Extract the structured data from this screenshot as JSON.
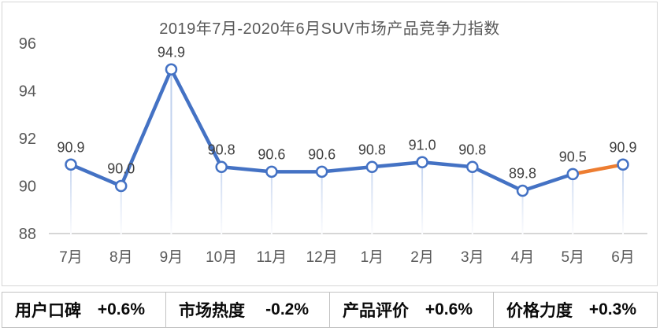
{
  "chart_data": {
    "type": "line",
    "title": "2019年7月-2020年6月SUV市场产品竞争力指数",
    "categories": [
      "7月",
      "8月",
      "9月",
      "10月",
      "11月",
      "12月",
      "1月",
      "2月",
      "3月",
      "4月",
      "5月",
      "6月"
    ],
    "values": [
      90.9,
      90.0,
      94.9,
      90.8,
      90.6,
      90.6,
      90.8,
      91.0,
      90.8,
      89.8,
      90.5,
      90.9
    ],
    "point_labels": [
      "90.9",
      "90.0",
      "94.9",
      "90.8",
      "90.6",
      "90.6",
      "90.8",
      "91.0",
      "90.8",
      "89.8",
      "90.5",
      "90.9"
    ],
    "ylim": [
      88,
      96
    ],
    "yticks": [
      96,
      94,
      92,
      90,
      88
    ],
    "grid": false,
    "legend": "none",
    "xlabel": "",
    "ylabel": "",
    "line_color": "#4472C4",
    "highlight_color": "#ED7D31",
    "highlight_last_segment": true,
    "marker_style": "open-circle",
    "dropline_color": "#B9CDEC",
    "axis_color": "#D6D6D6",
    "tick_label_color": "#595959",
    "data_label_color": "#404040",
    "title_color": "#595959"
  },
  "stats": {
    "items": [
      {
        "label": "用户口碑",
        "value": "+0.6%"
      },
      {
        "label": "市场热度",
        "value": "-0.2%"
      },
      {
        "label": "产品评价",
        "value": "+0.6%"
      },
      {
        "label": "价格力度",
        "value": "+0.3%"
      }
    ]
  }
}
